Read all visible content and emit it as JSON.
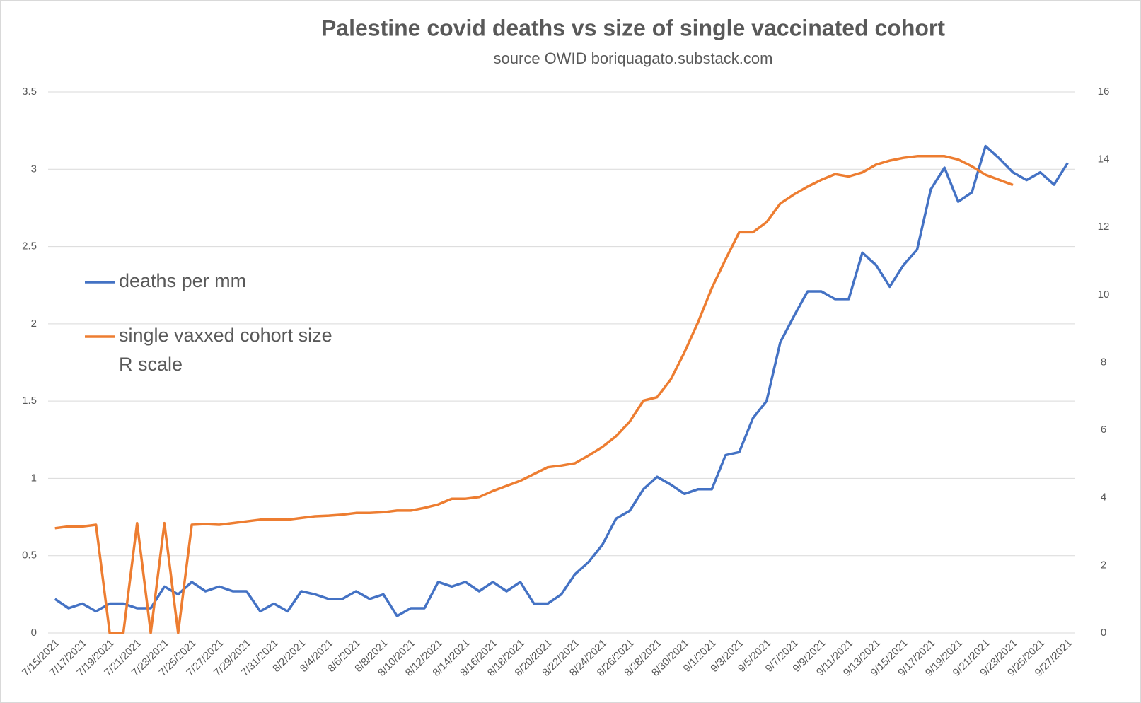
{
  "chart_data": {
    "type": "line",
    "title": "Palestine covid deaths vs size of single vaccinated cohort",
    "subtitle": "source OWID boriquagato.substack.com",
    "annotations": [
      "R scale"
    ],
    "categories": [
      "7/15/2021",
      null,
      "7/17/2021",
      null,
      "7/19/2021",
      null,
      "7/21/2021",
      null,
      "7/23/2021",
      null,
      "7/25/2021",
      null,
      "7/27/2021",
      null,
      "7/29/2021",
      null,
      "7/31/2021",
      null,
      "8/2/2021",
      null,
      "8/4/2021",
      null,
      "8/6/2021",
      null,
      "8/8/2021",
      null,
      "8/10/2021",
      null,
      "8/12/2021",
      null,
      "8/14/2021",
      null,
      "8/16/2021",
      null,
      "8/18/2021",
      null,
      "8/20/2021",
      null,
      "8/22/2021",
      null,
      "8/24/2021",
      null,
      "8/26/2021",
      null,
      "8/28/2021",
      null,
      "8/30/2021",
      null,
      "9/1/2021",
      null,
      "9/3/2021",
      null,
      "9/5/2021",
      null,
      "9/7/2021",
      null,
      "9/9/2021",
      null,
      "9/11/2021",
      null,
      "9/13/2021",
      null,
      "9/15/2021",
      null,
      "9/17/2021",
      null,
      "9/19/2021",
      null,
      "9/21/2021",
      null,
      "9/23/2021",
      null,
      "9/25/2021",
      null,
      "9/27/2021"
    ],
    "series": [
      {
        "name": "deaths per mm",
        "color": "#4472c4",
        "values": [
          0.22,
          0.16,
          0.19,
          0.14,
          0.19,
          0.19,
          0.16,
          0.16,
          0.3,
          0.25,
          0.33,
          0.27,
          0.3,
          0.27,
          0.27,
          0.14,
          0.19,
          0.14,
          0.27,
          0.25,
          0.22,
          0.22,
          0.27,
          0.22,
          0.25,
          0.11,
          0.16,
          0.16,
          0.33,
          0.3,
          0.33,
          0.27,
          0.33,
          0.27,
          0.33,
          0.19,
          0.19,
          0.25,
          0.38,
          0.46,
          0.57,
          0.74,
          0.79,
          0.93,
          1.01,
          0.96,
          0.9,
          0.93,
          0.93,
          1.15,
          1.17,
          1.39,
          1.5,
          1.88,
          2.05,
          2.21,
          2.21,
          2.16,
          2.16,
          2.46,
          2.38,
          2.24,
          2.38,
          2.48,
          2.87,
          3.01,
          2.79,
          2.85,
          3.15,
          3.07,
          2.98,
          2.93,
          2.98,
          2.9,
          3.04
        ]
      },
      {
        "name": "single vaxxed cohort size",
        "color": "#ed7d31",
        "axis": "y2",
        "values": [
          3.1,
          3.15,
          3.15,
          3.2,
          0,
          0,
          3.25,
          0,
          3.25,
          0,
          3.2,
          3.22,
          3.2,
          3.25,
          3.3,
          3.35,
          3.35,
          3.35,
          3.4,
          3.45,
          3.47,
          3.5,
          3.55,
          3.55,
          3.57,
          3.62,
          3.62,
          3.7,
          3.8,
          3.97,
          3.97,
          4.02,
          4.2,
          4.35,
          4.5,
          4.7,
          4.9,
          4.95,
          5.02,
          5.25,
          5.5,
          5.82,
          6.25,
          6.87,
          6.97,
          7.5,
          8.3,
          9.2,
          10.2,
          11.05,
          11.85,
          11.85,
          12.15,
          12.7,
          12.97,
          13.2,
          13.4,
          13.57,
          13.5,
          13.62,
          13.85,
          13.97,
          14.05,
          14.1,
          14.1,
          14.1,
          14.0,
          13.8,
          13.55,
          13.4,
          13.25,
          null,
          null,
          null,
          null
        ]
      }
    ],
    "ylim": [
      0,
      3.5
    ],
    "yticks": [
      0,
      0.5,
      1,
      1.5,
      2,
      2.5,
      3,
      3.5
    ],
    "y2lim": [
      0,
      16
    ],
    "y2ticks": [
      0,
      2,
      4,
      6,
      8,
      10,
      12,
      14,
      16
    ],
    "grid": true
  }
}
